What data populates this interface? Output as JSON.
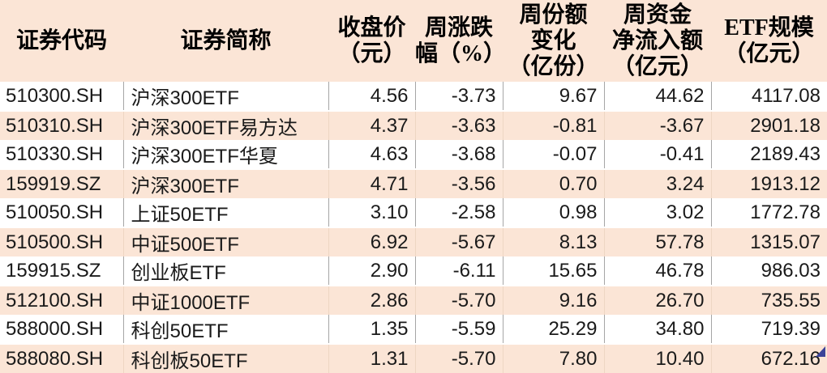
{
  "colors": {
    "band_peach": "#fbe5d6",
    "grid_line": "#a6a6a6",
    "fill_handle_navy": "#3b4398",
    "text": "#1a1a1a"
  },
  "chart_data": {
    "type": "table",
    "title": "",
    "columns": [
      {
        "key": "code",
        "label": "证券代码"
      },
      {
        "key": "name",
        "label": "证券简称"
      },
      {
        "key": "close_price",
        "label": "收盘价\n（元）"
      },
      {
        "key": "weekly_change_pct",
        "label": "周涨跌\n幅（%）"
      },
      {
        "key": "weekly_share_change",
        "label": "周份额\n变化\n（亿份）"
      },
      {
        "key": "weekly_net_inflow",
        "label": "周资金\n净流入额\n（亿元）"
      },
      {
        "key": "etf_scale",
        "label": "ETF规模\n（亿元）"
      }
    ],
    "rows": [
      [
        "510300.SH",
        "沪深300ETF",
        "4.56",
        "-3.73",
        "9.67",
        "44.62",
        "4117.08"
      ],
      [
        "510310.SH",
        "沪深300ETF易方达",
        "4.37",
        "-3.63",
        "-0.81",
        "-3.67",
        "2901.18"
      ],
      [
        "510330.SH",
        "沪深300ETF华夏",
        "4.63",
        "-3.68",
        "-0.07",
        "-0.41",
        "2189.43"
      ],
      [
        "159919.SZ",
        "沪深300ETF",
        "4.71",
        "-3.56",
        "0.70",
        "3.24",
        "1913.12"
      ],
      [
        "510050.SH",
        "上证50ETF",
        "3.10",
        "-2.58",
        "0.98",
        "3.02",
        "1772.78"
      ],
      [
        "510500.SH",
        "中证500ETF",
        "6.92",
        "-5.67",
        "8.13",
        "57.78",
        "1315.07"
      ],
      [
        "159915.SZ",
        "创业板ETF",
        "2.90",
        "-6.11",
        "15.65",
        "46.78",
        "986.03"
      ],
      [
        "512100.SH",
        "中证1000ETF",
        "2.86",
        "-5.70",
        "9.16",
        "26.70",
        "735.55"
      ],
      [
        "588000.SH",
        "科创50ETF",
        "1.35",
        "-5.59",
        "25.29",
        "34.80",
        "719.39"
      ],
      [
        "588080.SH",
        "科创板50ETF",
        "1.31",
        "-5.70",
        "7.80",
        "10.40",
        "672.16"
      ]
    ]
  }
}
